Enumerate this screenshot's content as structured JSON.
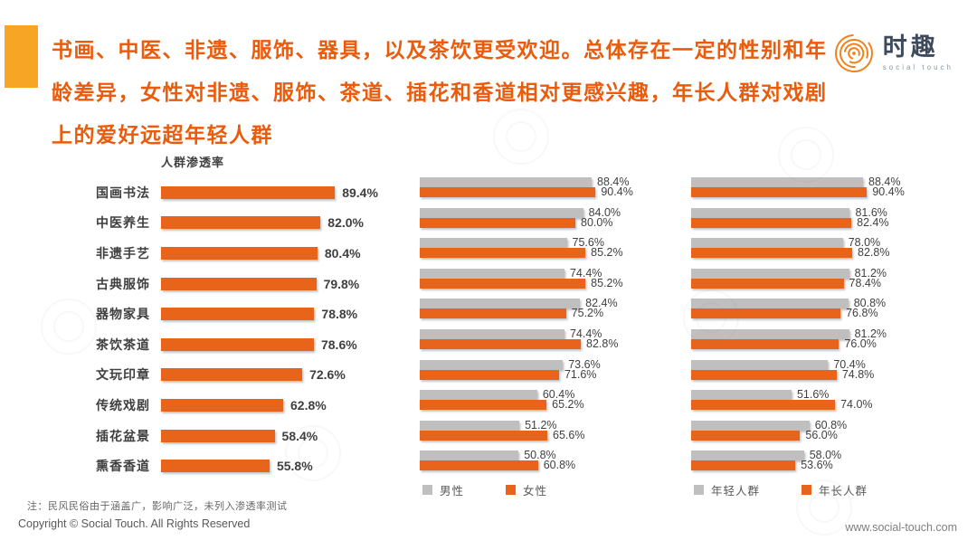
{
  "header": {
    "title_lines": [
      "书画、中医、非遗、服饰、器具，以及茶饮更受欢迎。总体存在一定的性别和年",
      "龄差异，女性对非遗、服饰、茶道、插花和香道相对更感兴趣，年长人群对戏剧",
      "上的爱好远超年轻人群"
    ],
    "logo": {
      "name": "时趣",
      "subtitle": "social touch"
    }
  },
  "footer": {
    "note": "注：民风民俗由于涵盖广，影响广泛，未列入渗透率测试",
    "copyright": "Copyright © Social Touch. All Rights Reserved",
    "website": "www.social-touch.com"
  },
  "colors": {
    "bar_orange": "#E8641A",
    "bar_gray": "#BFBFBF",
    "title_orange": "#EA5B0C",
    "accent_amber": "#F6A524",
    "text_dark": "#3F3F3F",
    "text_gray": "#595959"
  },
  "chart_data": [
    {
      "type": "bar",
      "orientation": "horizontal",
      "title": "人群渗透率",
      "categories": [
        "国画书法",
        "中医养生",
        "非遗手艺",
        "古典服饰",
        "器物家具",
        "茶饮茶道",
        "文玩印章",
        "传统戏剧",
        "插花盆景",
        "熏香香道"
      ],
      "values": [
        89.4,
        82.0,
        80.4,
        79.8,
        78.8,
        78.6,
        72.6,
        62.8,
        58.4,
        55.8
      ],
      "value_labels": [
        "89.4%",
        "82.0%",
        "80.4%",
        "79.8%",
        "78.8%",
        "78.6%",
        "72.6%",
        "62.8%",
        "58.4%",
        "55.8%"
      ],
      "bar_color": "#E8641A",
      "xlim": [
        0,
        100
      ],
      "grid": false
    },
    {
      "type": "bar",
      "orientation": "horizontal",
      "group": "gender",
      "categories": [
        "国画书法",
        "中医养生",
        "非遗手艺",
        "古典服饰",
        "器物家具",
        "茶饮茶道",
        "文玩印章",
        "传统戏剧",
        "插花盆景",
        "熏香香道"
      ],
      "series": [
        {
          "key": "male",
          "name": "男性",
          "color": "#BFBFBF",
          "values": [
            88.4,
            84.0,
            75.6,
            74.4,
            82.4,
            74.4,
            73.6,
            60.4,
            51.2,
            50.8
          ]
        },
        {
          "key": "female",
          "name": "女性",
          "color": "#E8641A",
          "values": [
            90.4,
            80.0,
            85.2,
            85.2,
            75.2,
            82.8,
            71.6,
            65.2,
            65.6,
            60.8
          ]
        }
      ],
      "legend_position": "bottom",
      "xlim": [
        0,
        100
      ],
      "grid": false
    },
    {
      "type": "bar",
      "orientation": "horizontal",
      "group": "age",
      "categories": [
        "国画书法",
        "中医养生",
        "非遗手艺",
        "古典服饰",
        "器物家具",
        "茶饮茶道",
        "文玩印章",
        "传统戏剧",
        "插花盆景",
        "熏香香道"
      ],
      "series": [
        {
          "key": "young",
          "name": "年轻人群",
          "color": "#BFBFBF",
          "values": [
            88.4,
            81.6,
            78.0,
            81.2,
            80.8,
            81.2,
            70.4,
            51.6,
            60.8,
            58.0
          ]
        },
        {
          "key": "older",
          "name": "年长人群",
          "color": "#E8641A",
          "values": [
            90.4,
            82.4,
            82.8,
            78.4,
            76.8,
            76.0,
            74.8,
            74.0,
            56.0,
            53.6
          ]
        }
      ],
      "legend_position": "bottom",
      "xlim": [
        0,
        100
      ],
      "grid": false
    }
  ]
}
